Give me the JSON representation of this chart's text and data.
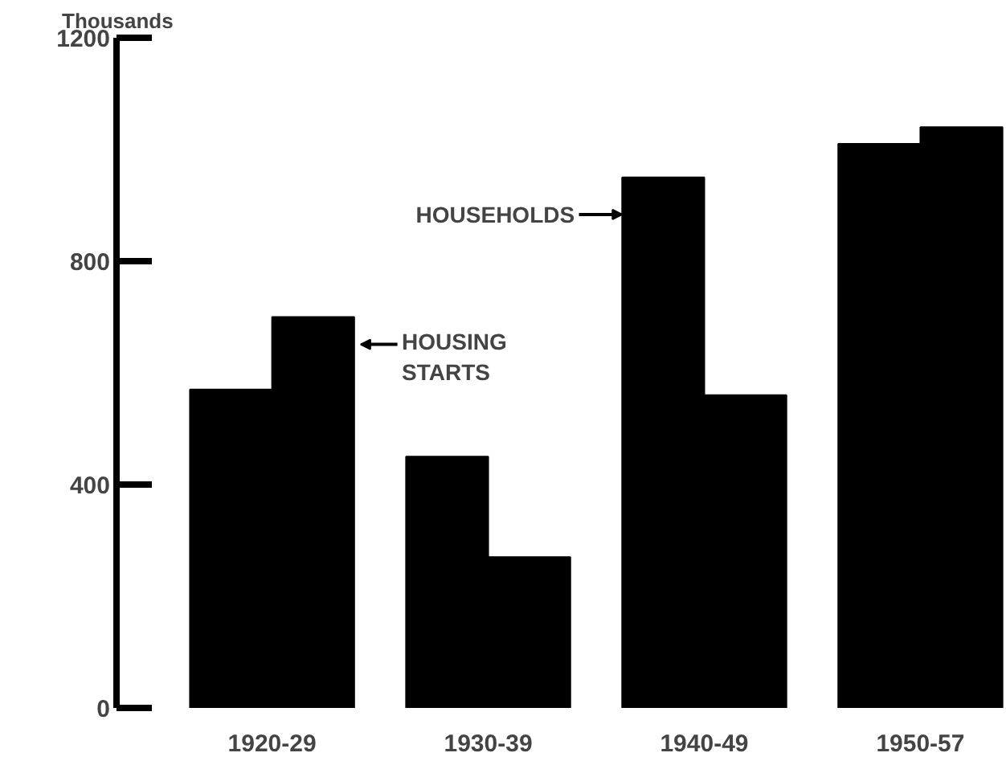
{
  "chart_data": {
    "type": "bar",
    "ylabel": "Thousands",
    "categories": [
      "1920-29",
      "1930-39",
      "1940-49",
      "1950-57"
    ],
    "series": [
      {
        "name": "HOUSEHOLDS",
        "color": "#000000",
        "values": [
          570,
          450,
          950,
          1010
        ]
      },
      {
        "name": "HOUSING STARTS",
        "color": "#000000",
        "values": [
          700,
          270,
          560,
          1040
        ]
      }
    ],
    "ylim": [
      0,
      1200
    ],
    "yticks": [
      0,
      400,
      800,
      1200
    ],
    "grid": false
  }
}
